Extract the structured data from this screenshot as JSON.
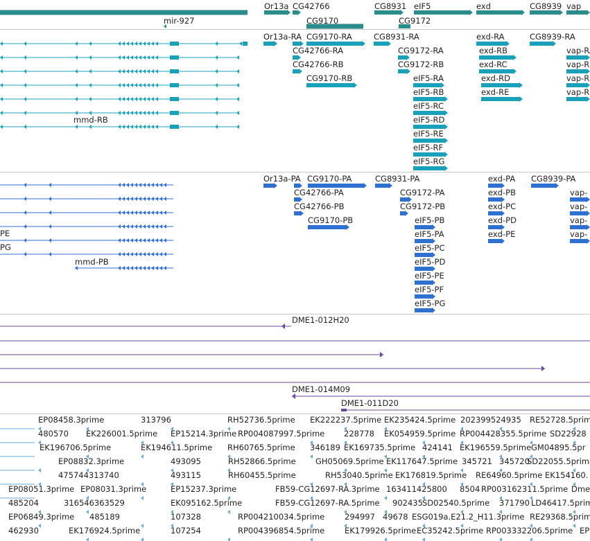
{
  "colors": {
    "gene": "#2a8c8c",
    "transcript": "#1aa0b8",
    "protein": "#2e6fcf",
    "clone": "#6a4aa0",
    "est": "#6aa8d4",
    "separator": "#c8c8c8"
  },
  "tracks": {
    "genes": {
      "labels": [
        "mir-927",
        "Or13a",
        "CG42766",
        "CG9170",
        "CG9172",
        "CG8931",
        "eIF5",
        "exd",
        "CG8939",
        "vap"
      ]
    },
    "transcripts": {
      "labels": [
        "mmd-RB",
        "Or13a-RA",
        "CG9170-RA",
        "CG42766-RA",
        "CG42766-RB",
        "CG9170-RB",
        "CG8931-RA",
        "CG9172-RA",
        "CG9172-RB",
        "eIF5-RA",
        "eIF5-RB",
        "eIF5-RC",
        "eIF5-RD",
        "eIF5-RE",
        "eIF5-RF",
        "eIF5-RG",
        "exd-RA",
        "exd-RB",
        "exd-RC",
        "exd-RD",
        "exd-RE",
        "CG8939-RA",
        "vap-RA",
        "vap-R",
        "vap-R",
        "vap-R"
      ]
    },
    "proteins": {
      "labels": [
        "PE",
        "PG",
        "mmd-PB",
        "Or13a-PA",
        "CG9170-PA",
        "CG42766-PA",
        "CG42766-PB",
        "CG9170-PB",
        "CG8931-PA",
        "CG9172-PA",
        "CG9172-PB",
        "eIF5-PB",
        "eIF5-PA",
        "eIF5-PC",
        "eIF5-PD",
        "eIF5-PE",
        "eIF5-PF",
        "eIF5-PG",
        "exd-PA",
        "exd-PB",
        "exd-PC",
        "exd-PD",
        "exd-PE",
        "CG8939-PA",
        "vap-",
        "vap-",
        "vap-",
        "vap-"
      ]
    },
    "clones": {
      "labels": [
        "DME1-012H20",
        "DME1-014M09",
        "DME1-011D20"
      ]
    },
    "ests": {
      "labels": [
        "EP08458.3prime",
        "313796",
        "RH52736.5prime",
        "EK222237.5prime",
        "EK235424.5prime",
        "202399524935",
        "RE52728.5prime",
        "480570",
        "EK226001.5prime",
        "EP15214.3prime",
        "RP004087997.5prime",
        "228778",
        "EK054959.5prime",
        "RP004428355.5prime",
        "SD22928",
        "EK196706.5prime",
        "EK194611.5prime",
        "RH60765.5prime",
        "346189",
        "EK169735.5prime",
        "424141",
        "EK196559.5prime",
        "GM04895.5pr",
        "EP08832.3prime",
        "493095",
        "RH52866.5prime",
        "GH05069.5prime",
        "EK117647.5prime",
        "345721",
        "345720",
        "SD22055.5prime",
        "475744313740",
        "493115",
        "RH60455.5prime",
        "RH53040.5prime",
        "EK176819.5prime",
        "RE64960.5prime",
        "EK154160.",
        "EP08051.3prime",
        "EP08031.3prime",
        "EP15237.3prime",
        "FB59-CG12697-RA.3prime",
        "163411425800",
        "8504",
        "RP003162311.5prime",
        "Dme",
        "485204",
        "316546363529",
        "EK095162.5prime",
        "FB59-CG12697-RA.5prime",
        "902435",
        "SD02540.5prime",
        "371790",
        "LD46417.5prime",
        "EP06849.3prime",
        "485189",
        "107328",
        "RP004210034.5prime",
        "294997",
        "49678",
        "ESG019a.E21.2_H11.3prime",
        "RE29368.5prime",
        "462930",
        "EK176924.5prime",
        "107254",
        "RP004396854.5prime",
        "EK179926.5prime",
        "EC35242.5prime",
        "RP003332206.5prime",
        "EP"
      ]
    }
  }
}
